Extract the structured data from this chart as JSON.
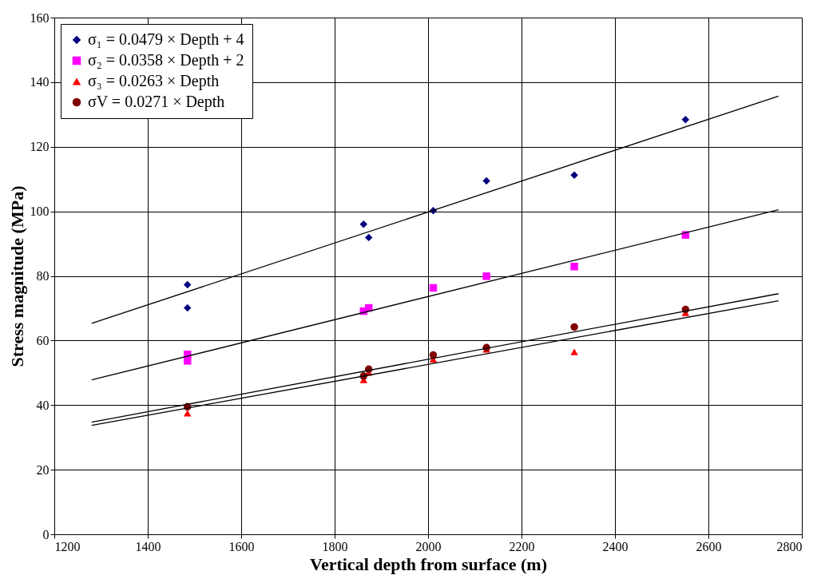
{
  "chart_data": {
    "type": "scatter",
    "xlabel": "Vertical depth from surface (m)",
    "ylabel": "Stress magnitude (MPa)",
    "xlim": [
      1200,
      2800
    ],
    "xticks": [
      1200,
      1400,
      1600,
      1800,
      2000,
      2200,
      2400,
      2600,
      2800
    ],
    "ylim": [
      0,
      160
    ],
    "yticks": [
      0,
      20,
      40,
      60,
      80,
      100,
      120,
      140,
      160
    ],
    "grid": true,
    "legend": "top left",
    "series": [
      {
        "name": "σ₁ = 0.0479 × Depth + 4",
        "color": "#000080",
        "marker": "diamond",
        "x": [
          1485,
          1485,
          1862,
          1873,
          2011,
          2125,
          2313,
          2551
        ],
        "values": [
          77.3,
          70.1,
          96.0,
          91.9,
          100.2,
          109.4,
          111.2,
          128.4
        ]
      },
      {
        "name": "σ₂ = 0.0358 × Depth + 2",
        "color": "#ff00ff",
        "marker": "square",
        "x": [
          1485,
          1485,
          1862,
          1873,
          2011,
          2125,
          2313,
          2551
        ],
        "values": [
          55.7,
          53.7,
          69.1,
          70.1,
          76.3,
          79.9,
          82.9,
          92.7
        ]
      },
      {
        "name": "σ₃ = 0.0263 × Depth",
        "color": "#ff0000",
        "marker": "triangle",
        "x": [
          1485,
          1862,
          1873,
          2011,
          2125,
          2313,
          2551
        ],
        "values": [
          37.5,
          47.8,
          50.1,
          54.2,
          57.3,
          56.5,
          68.6
        ]
      },
      {
        "name": "σV = 0.0271 × Depth",
        "color": "#800000",
        "marker": "circle",
        "x": [
          1485,
          1862,
          1873,
          2011,
          2125,
          2313,
          2551
        ],
        "values": [
          39.5,
          49.0,
          51.1,
          55.5,
          57.8,
          64.2,
          69.6
        ]
      },
      {
        "type": "line",
        "color": "#000000",
        "x": [
          1280,
          2750
        ],
        "values": [
          65.3,
          135.7
        ]
      },
      {
        "type": "line",
        "color": "#000000",
        "x": [
          1280,
          2750
        ],
        "values": [
          47.8,
          100.5
        ]
      },
      {
        "type": "line",
        "color": "#000000",
        "x": [
          1280,
          2750
        ],
        "values": [
          33.7,
          72.3
        ]
      },
      {
        "type": "line",
        "color": "#000000",
        "x": [
          1280,
          2750
        ],
        "values": [
          34.7,
          74.5
        ]
      }
    ]
  }
}
